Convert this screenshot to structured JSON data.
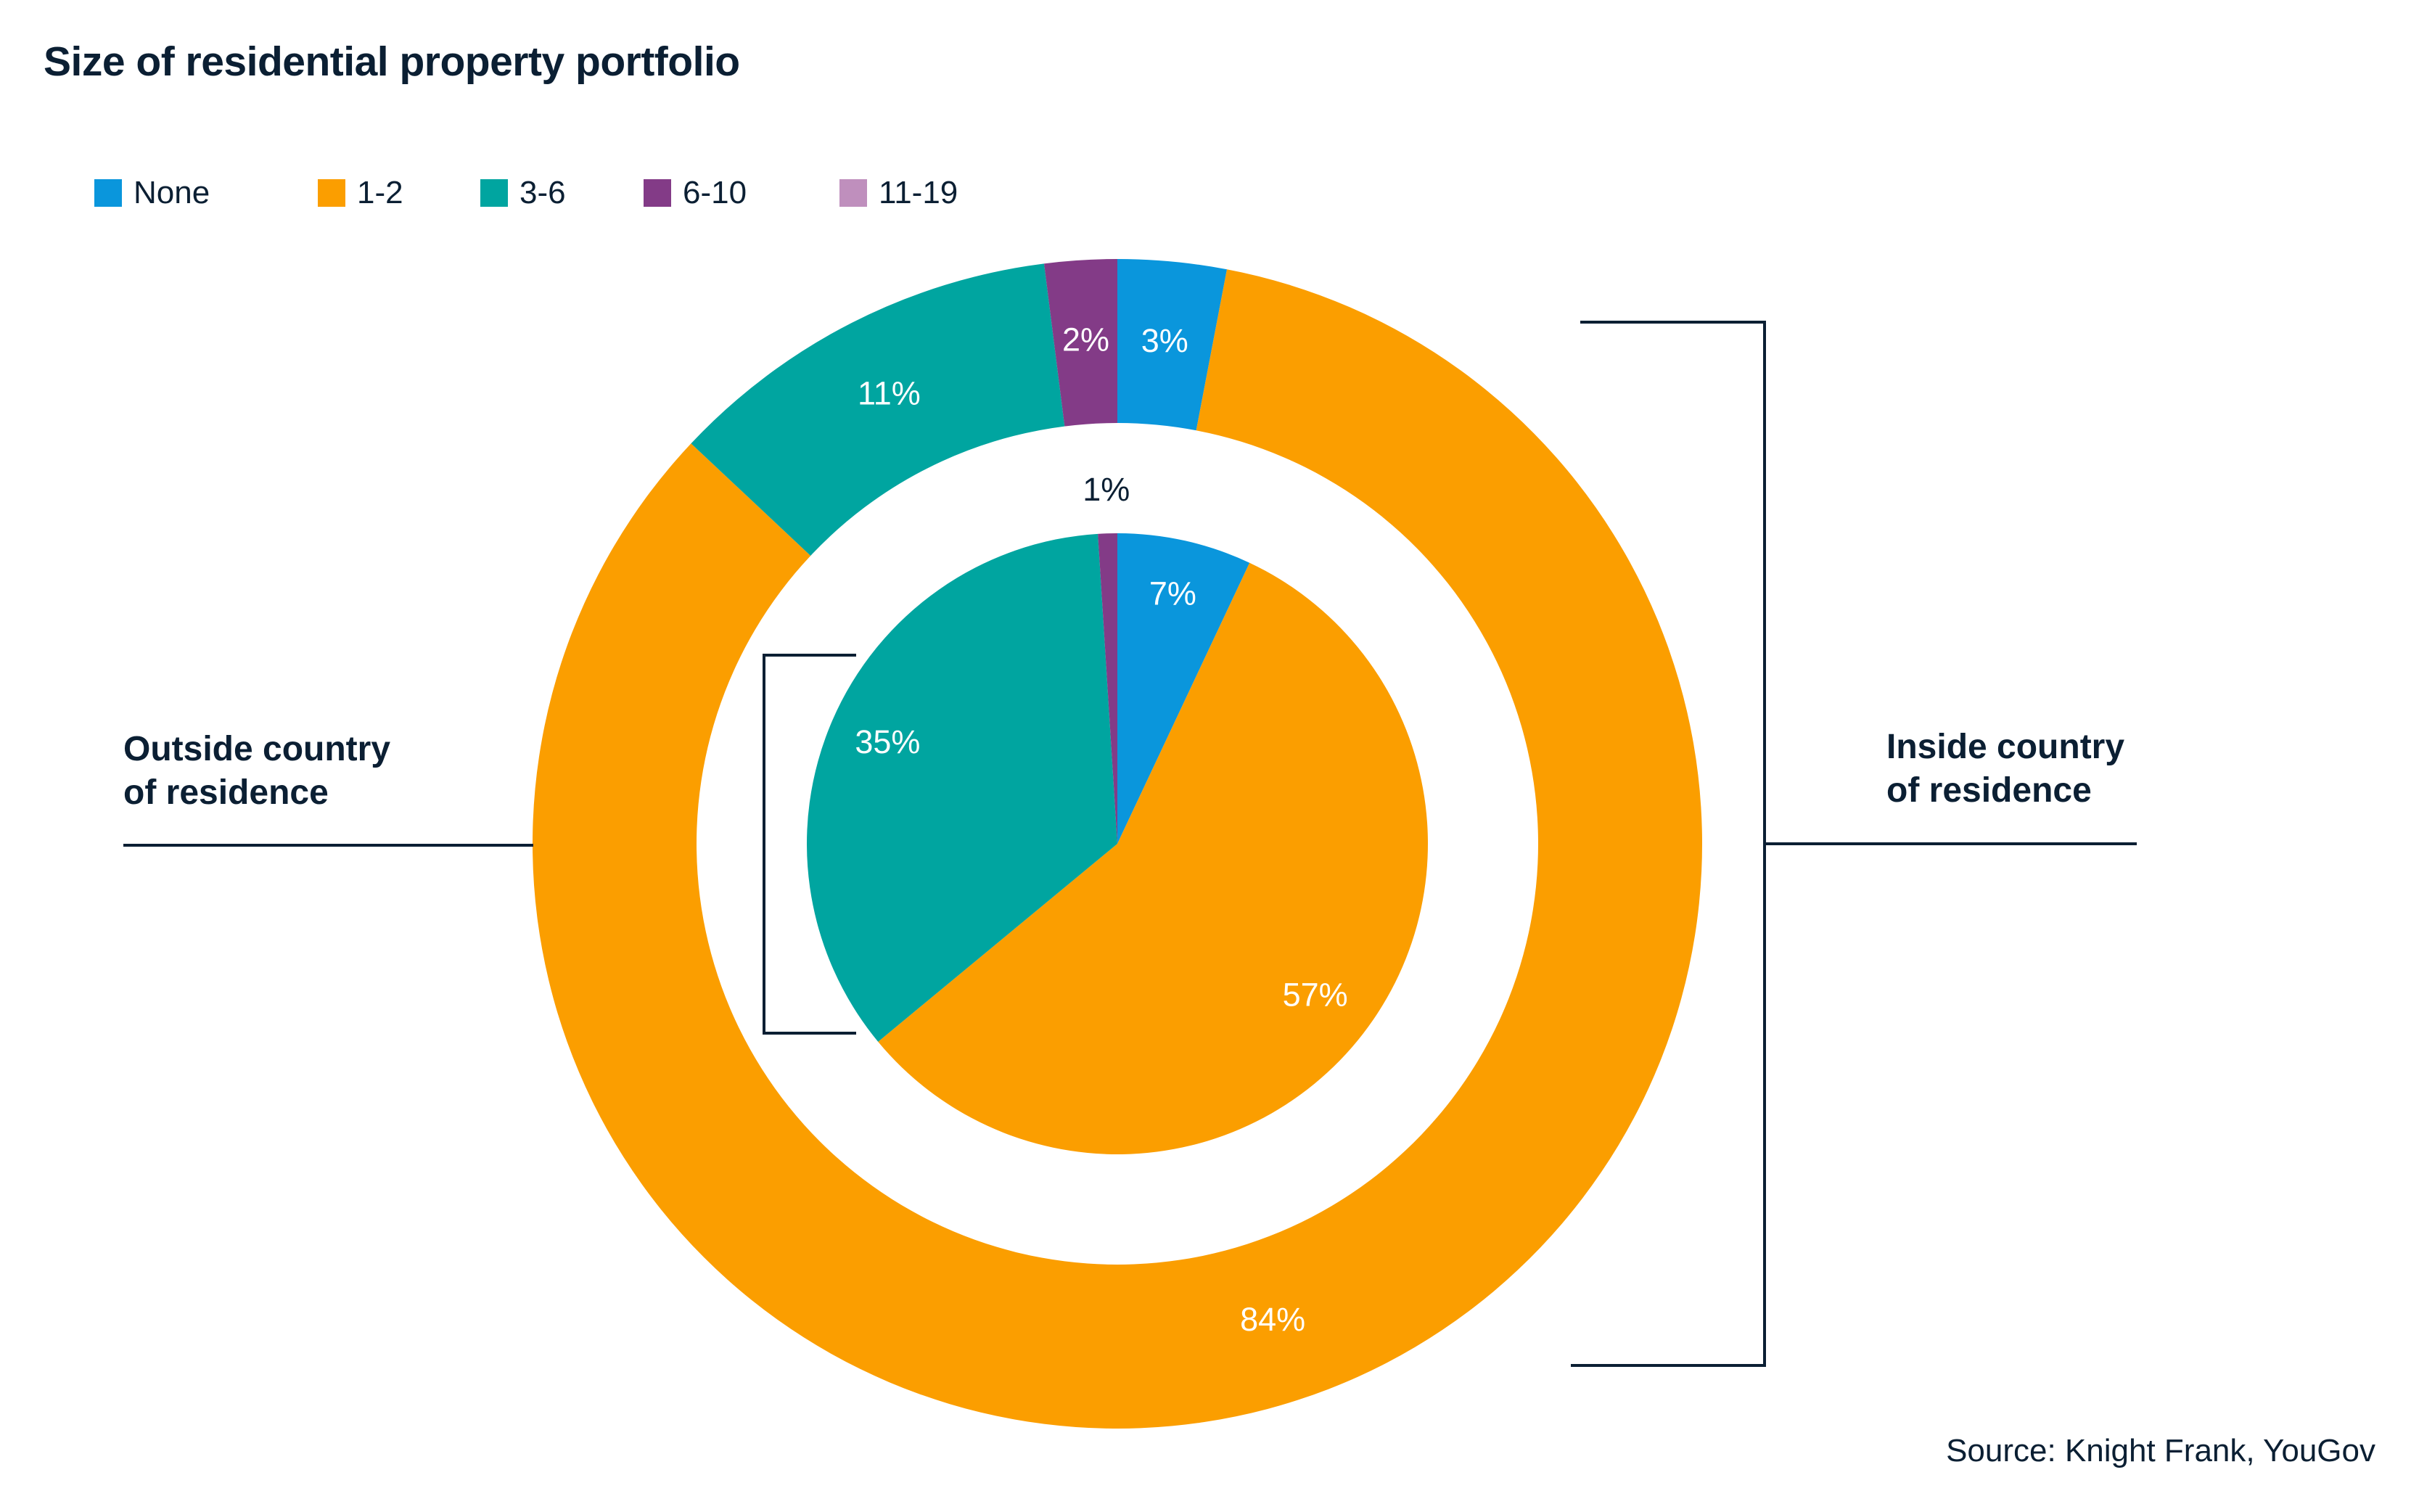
{
  "title": "Size of residential property portfolio",
  "source": "Source: Knight Frank, YouGov",
  "colors": {
    "None": "#0a96dc",
    "1-2": "#fb9e00",
    "3-6": "#00a5a0",
    "6-10": "#833b87",
    "11-19": "#bf8fbd",
    "text": "#0b1f33",
    "bracket": "#0b1f33"
  },
  "legend": [
    {
      "label": "None",
      "color": "#0a96dc"
    },
    {
      "label": "1-2",
      "color": "#fb9e00"
    },
    {
      "label": "3-6",
      "color": "#00a5a0"
    },
    {
      "label": "6-10",
      "color": "#833b87"
    },
    {
      "label": "11-19",
      "color": "#bf8fbd"
    }
  ],
  "annotations": {
    "outside": {
      "line1": "Outside country",
      "line2": "of residence"
    },
    "inside": {
      "line1": "Inside country",
      "line2": "of residence"
    }
  },
  "chart_data": [
    {
      "type": "pie",
      "variant": "donut",
      "ring": "outer",
      "annotation": "Inside country of residence",
      "slices": [
        {
          "category": "None",
          "value": 3,
          "label": "3%",
          "color": "#0a96dc"
        },
        {
          "category": "1-2",
          "value": 84,
          "label": "84%",
          "color": "#fb9e00"
        },
        {
          "category": "3-6",
          "value": 11,
          "label": "11%",
          "color": "#00a5a0"
        },
        {
          "category": "6-10",
          "value": 2,
          "label": "2%",
          "color": "#833b87"
        }
      ]
    },
    {
      "type": "pie",
      "ring": "inner",
      "annotation": "Outside country of residence",
      "slices": [
        {
          "category": "None",
          "value": 7,
          "label": "7%",
          "color": "#0a96dc"
        },
        {
          "category": "1-2",
          "value": 57,
          "label": "57%",
          "color": "#fb9e00"
        },
        {
          "category": "3-6",
          "value": 35,
          "label": "35%",
          "color": "#00a5a0"
        },
        {
          "category": "6-10",
          "value": 1,
          "label": "1%",
          "color": "#833b87"
        }
      ]
    }
  ]
}
